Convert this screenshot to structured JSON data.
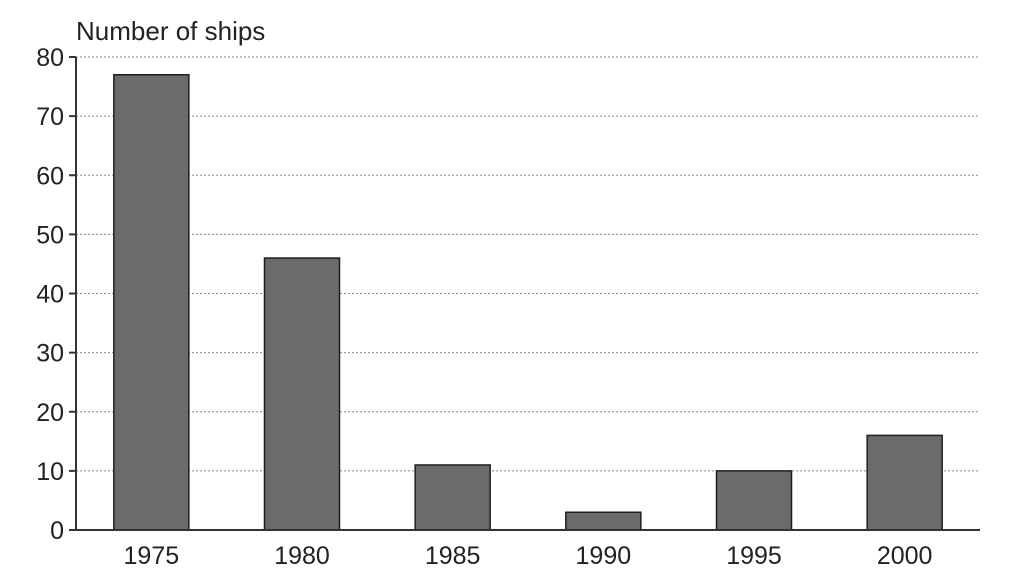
{
  "chart_data": {
    "type": "bar",
    "title": "",
    "xlabel": "",
    "ylabel": "Number of ships",
    "categories": [
      "1975",
      "1980",
      "1985",
      "1990",
      "1995",
      "2000"
    ],
    "values": [
      77,
      46,
      11,
      3,
      10,
      16
    ],
    "ylim": [
      0,
      80
    ],
    "yticks": [
      0,
      10,
      20,
      30,
      40,
      50,
      60,
      70,
      80
    ],
    "grid": true,
    "bar_color": "#6b6b6b"
  }
}
